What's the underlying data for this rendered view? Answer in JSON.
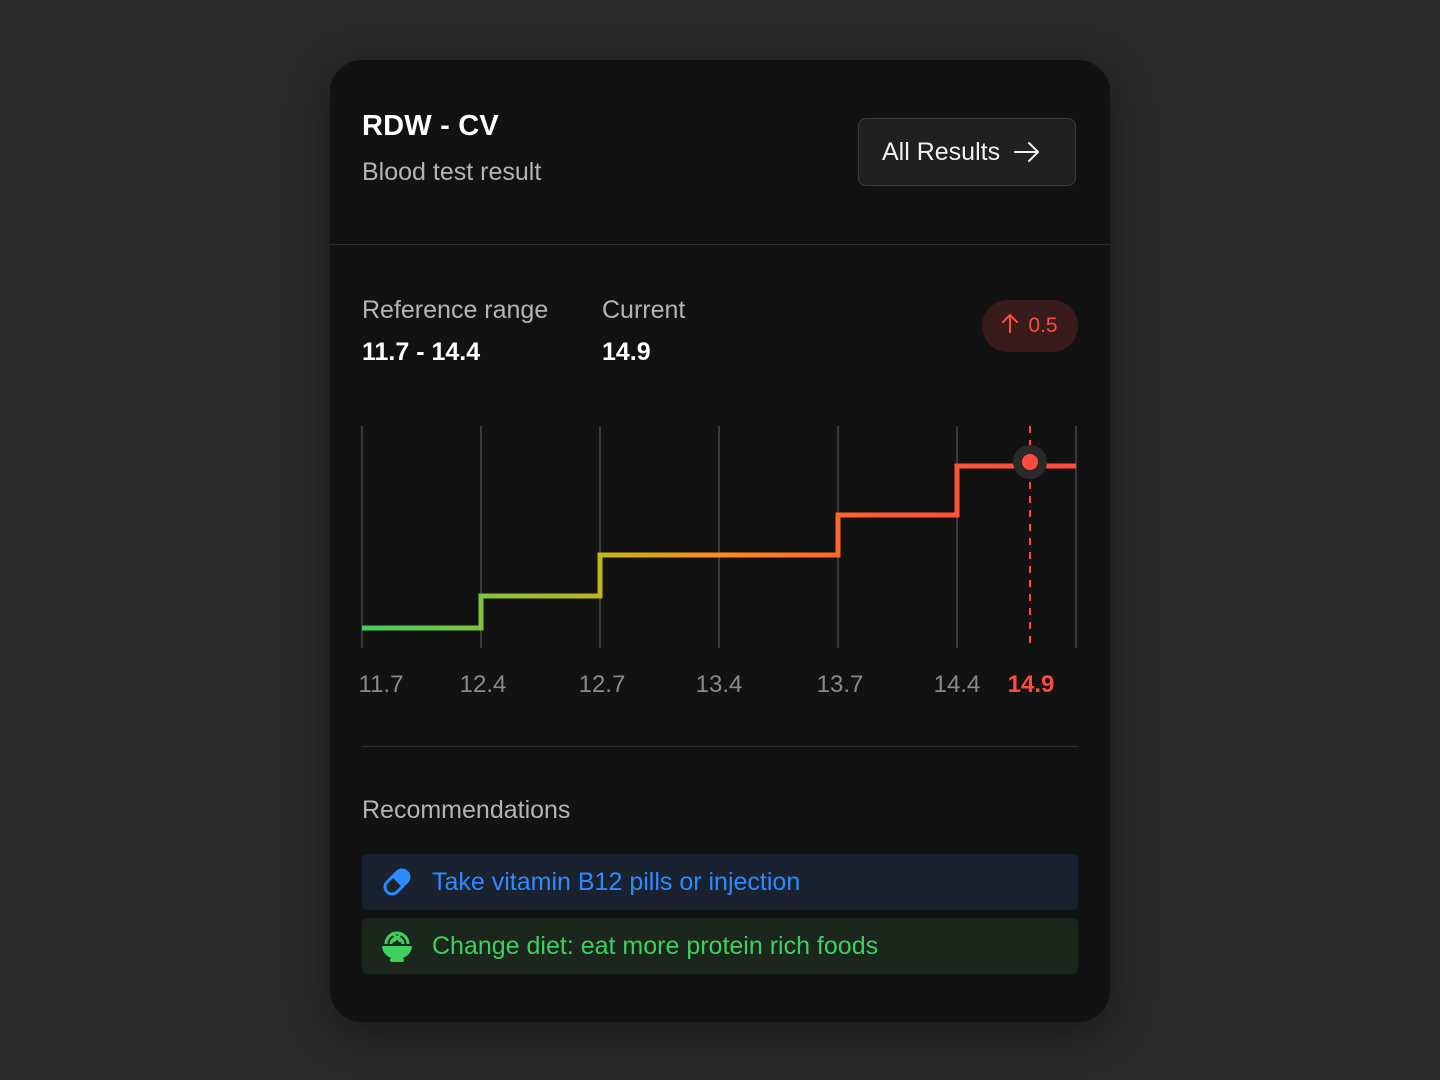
{
  "header": {
    "title": "RDW - CV",
    "subtitle": "Blood test result",
    "all_results_label": "All Results"
  },
  "stats": {
    "reference_label": "Reference range",
    "reference_value": "11.7 - 14.4",
    "current_label": "Current",
    "current_value": "14.9",
    "delta": "0.5"
  },
  "chart_data": {
    "type": "line",
    "x_ticks": [
      "11.7",
      "12.4",
      "12.7",
      "13.4",
      "13.7",
      "14.4",
      "14.9"
    ],
    "current_marker": 14.9,
    "step_levels": [
      {
        "from": "11.7",
        "to": "12.4",
        "level": 1
      },
      {
        "from": "12.4",
        "to": "12.7",
        "level": 2
      },
      {
        "from": "12.7",
        "to": "13.7",
        "level": 3
      },
      {
        "from": "13.7",
        "to": "14.4",
        "level": 4
      },
      {
        "from": "14.4",
        "to": "end",
        "level": 5
      }
    ],
    "colors": {
      "low": "#3fcf5f",
      "mid": "#ff8a1f",
      "high": "#ff4a3f",
      "grid": "#3a3a3a",
      "tick_label": "#8a8a8a"
    }
  },
  "recommendations": {
    "title": "Recommendations",
    "items": [
      {
        "text": "Take vitamin B12 pills or injection",
        "icon": "pill-icon",
        "color": "#2e8bff"
      },
      {
        "text": "Change diet: eat more protein rich foods",
        "icon": "food-bowl-icon",
        "color": "#3fcf5f"
      }
    ]
  }
}
